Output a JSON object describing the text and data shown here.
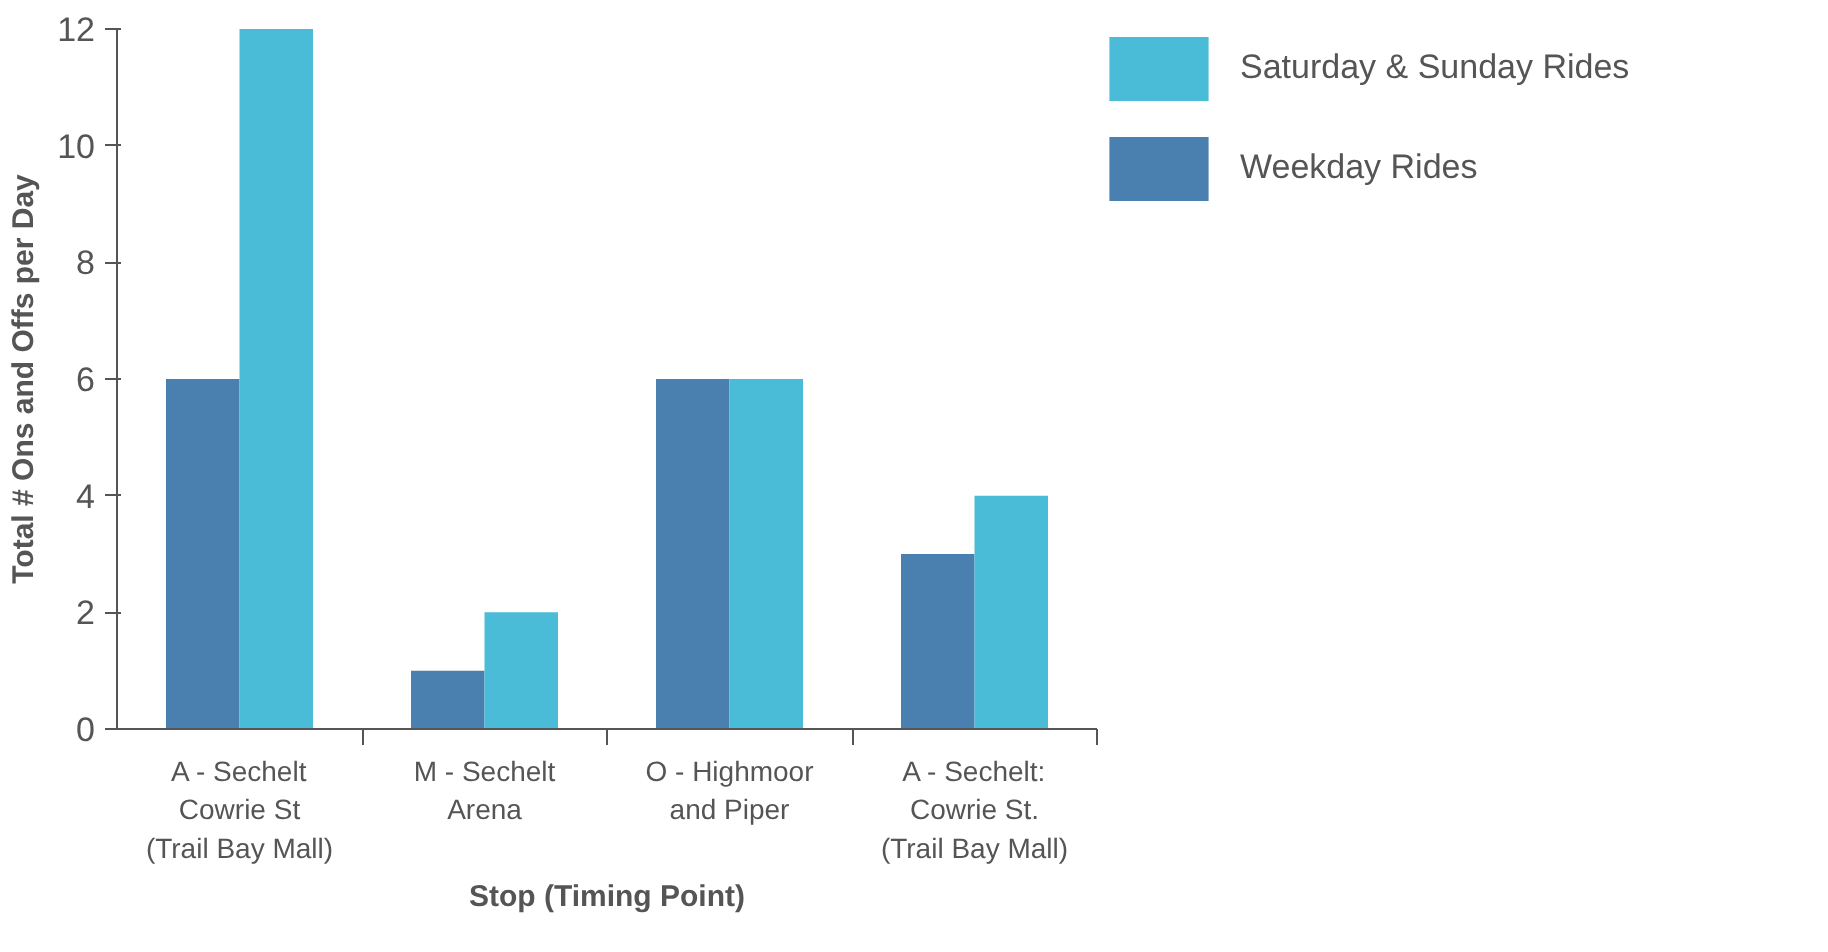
{
  "chart_data": {
    "type": "bar",
    "xlabel": "Stop (Timing Point)",
    "ylabel": "Total # Ons and Offs per Day",
    "categories": [
      "A - Sechelt\nCowrie St\n(Trail Bay Mall)",
      "M - Sechelt\nArena",
      "O - Highmoor\nand Piper",
      "A - Sechelt:\nCowrie St.\n(Trail Bay Mall)"
    ],
    "series": [
      {
        "name": "Weekday Rides",
        "color": "#4a80b0",
        "values": [
          6,
          1,
          6,
          3
        ]
      },
      {
        "name": "Saturday & Sunday Rides",
        "color": "#4bbcd7",
        "values": [
          12,
          2,
          6,
          4
        ]
      }
    ],
    "ylim": [
      0,
      12
    ],
    "yticks": [
      0,
      2,
      4,
      6,
      8,
      10,
      12
    ],
    "grid": false,
    "legend": "top right"
  }
}
